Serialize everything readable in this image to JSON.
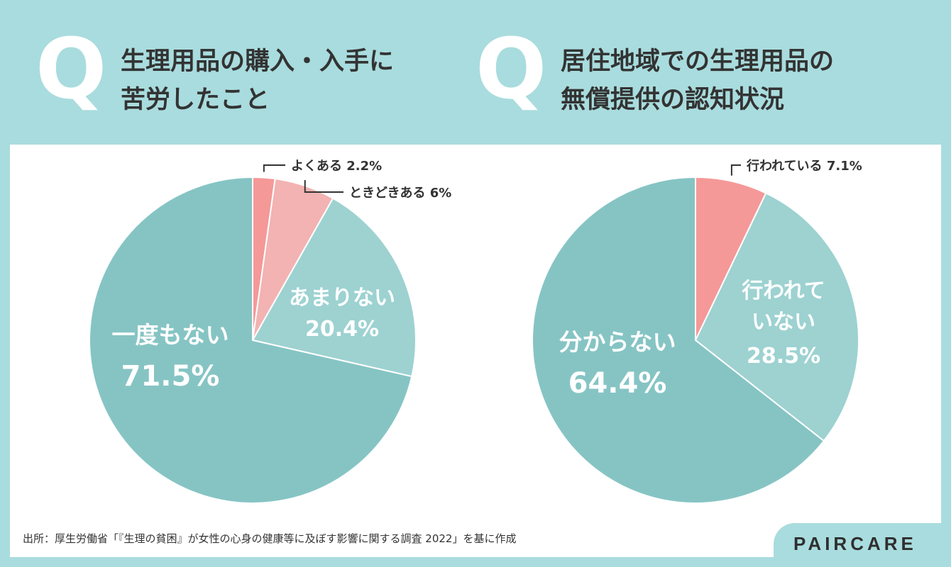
{
  "questions": [
    {
      "mark": "Q",
      "line1": "生理用品の購入・入手に",
      "line2": "苦労したこと"
    },
    {
      "mark": "Q",
      "line1": "居住地域での生理用品の",
      "line2": "無償提供の認知状況"
    }
  ],
  "chart_data": [
    {
      "type": "pie",
      "slices": [
        {
          "label": "よくある",
          "value": 2.2,
          "display": "2.2%",
          "color": "#f59898"
        },
        {
          "label": "ときどきある",
          "value": 6,
          "display": "6%",
          "color": "#f2b3b2"
        },
        {
          "label": "あまりない",
          "value": 20.4,
          "display": "20.4%",
          "color": "#9dd2d1"
        },
        {
          "label": "一度もない",
          "value": 71.5,
          "display": "71.5%",
          "color": "#86c4c4"
        }
      ]
    },
    {
      "type": "pie",
      "slices": [
        {
          "label": "行われている",
          "value": 7.1,
          "display": "7.1%",
          "color": "#f59898"
        },
        {
          "label": "行われて\nいない",
          "value": 28.5,
          "display": "28.5%",
          "color": "#9dd2d1"
        },
        {
          "label": "分からない",
          "value": 64.4,
          "display": "64.4%",
          "color": "#86c4c4"
        }
      ]
    }
  ],
  "footer": {
    "source": "出所：厚生労働省「『生理の貧困』が女性の心身の健康等に及ぼす影響に関する調査 2022」を基に作成",
    "brand": "PAIRCARE"
  }
}
